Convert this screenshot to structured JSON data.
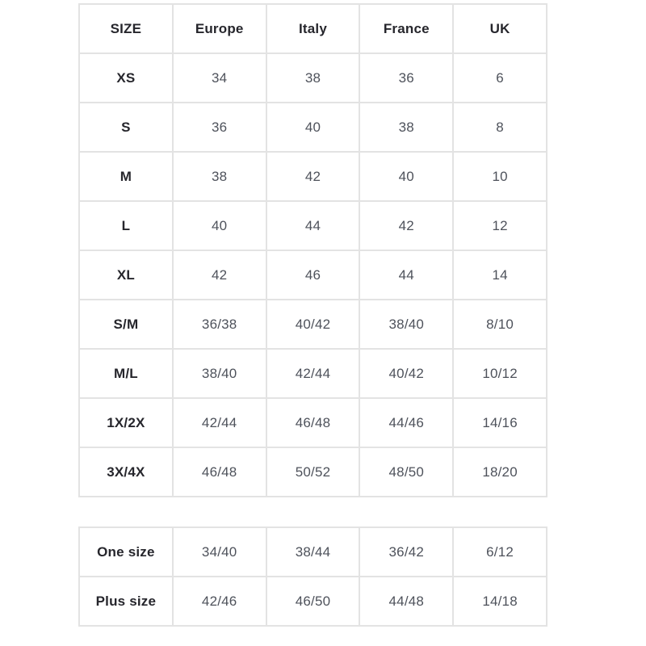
{
  "main_table": {
    "columns": [
      "SIZE",
      "Europe",
      "Italy",
      "France",
      "UK"
    ],
    "rows": [
      {
        "size": "XS",
        "values": [
          "34",
          "38",
          "36",
          "6"
        ]
      },
      {
        "size": "S",
        "values": [
          "36",
          "40",
          "38",
          "8"
        ]
      },
      {
        "size": "M",
        "values": [
          "38",
          "42",
          "40",
          "10"
        ]
      },
      {
        "size": "L",
        "values": [
          "40",
          "44",
          "42",
          "12"
        ]
      },
      {
        "size": "XL",
        "values": [
          "42",
          "46",
          "44",
          "14"
        ]
      },
      {
        "size": "S/M",
        "values": [
          "36/38",
          "40/42",
          "38/40",
          "8/10"
        ]
      },
      {
        "size": "M/L",
        "values": [
          "38/40",
          "42/44",
          "40/42",
          "10/12"
        ]
      },
      {
        "size": "1X/2X",
        "values": [
          "42/44",
          "46/48",
          "44/46",
          "14/16"
        ]
      },
      {
        "size": "3X/4X",
        "values": [
          "46/48",
          "50/52",
          "48/50",
          "18/20"
        ]
      }
    ]
  },
  "secondary_table": {
    "rows": [
      {
        "size": "One size",
        "values": [
          "34/40",
          "38/44",
          "36/42",
          "6/12"
        ]
      },
      {
        "size": "Plus size",
        "values": [
          "42/46",
          "46/50",
          "44/48",
          "14/18"
        ]
      }
    ]
  },
  "colors": {
    "border": "#e3e3e3",
    "heading_text": "#26262c",
    "value_text": "#4e525b",
    "background": "#ffffff"
  }
}
